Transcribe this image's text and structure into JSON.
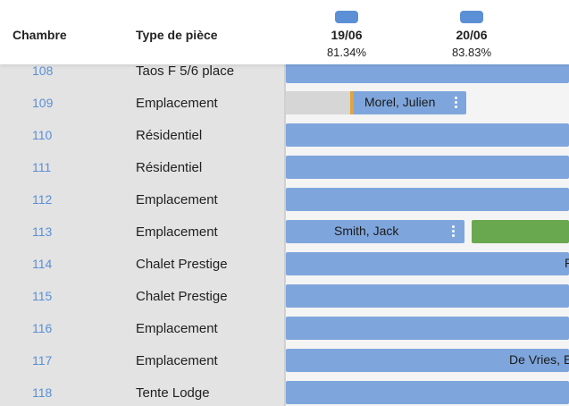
{
  "header": {
    "col_room": "Chambre",
    "col_type": "Type de pièce",
    "days": [
      {
        "date": "19/06",
        "occupancy": "81.34%"
      },
      {
        "date": "20/06",
        "occupancy": "83.83%"
      }
    ]
  },
  "rows": [
    {
      "number": "108",
      "type": "Taos F 5/6 place"
    },
    {
      "number": "109",
      "type": "Emplacement"
    },
    {
      "number": "110",
      "type": "Résidentiel"
    },
    {
      "number": "111",
      "type": "Résidentiel"
    },
    {
      "number": "112",
      "type": "Emplacement"
    },
    {
      "number": "113",
      "type": "Emplacement"
    },
    {
      "number": "114",
      "type": "Chalet Prestige"
    },
    {
      "number": "115",
      "type": "Chalet Prestige"
    },
    {
      "number": "116",
      "type": "Emplacement"
    },
    {
      "number": "117",
      "type": "Emplacement"
    },
    {
      "number": "118",
      "type": "Tente Lodge"
    }
  ],
  "bookings": {
    "morel": "Morel, Julien",
    "smith": "Smith, Jack",
    "r114": "R",
    "devries": "De Vries, E"
  },
  "colors": {
    "booking_blue": "#7fa6dc",
    "booking_green": "#6aa84f",
    "badge_blue": "#5b8fd6",
    "stripe_orange": "#e3a33b",
    "room_link": "#5b8fd6"
  }
}
